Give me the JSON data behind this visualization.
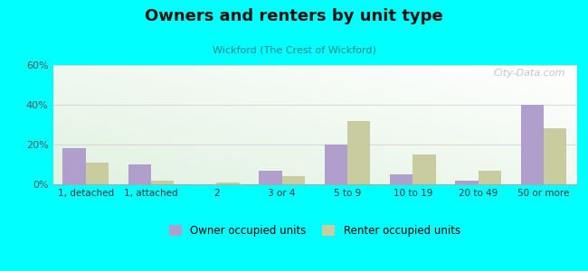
{
  "title": "Owners and renters by unit type",
  "subtitle": "Wickford (The Crest of Wickford)",
  "categories": [
    "1, detached",
    "1, attached",
    "2",
    "3 or 4",
    "5 to 9",
    "10 to 19",
    "20 to 49",
    "50 or more"
  ],
  "owner_values": [
    18,
    10,
    0,
    7,
    20,
    5,
    2,
    40
  ],
  "renter_values": [
    11,
    2,
    1,
    4,
    32,
    15,
    7,
    28
  ],
  "owner_color": "#b09fcc",
  "renter_color": "#c8cc9f",
  "ylim": [
    0,
    60
  ],
  "yticks": [
    0,
    20,
    40,
    60
  ],
  "ytick_labels": [
    "0%",
    "20%",
    "40%",
    "60%"
  ],
  "background_color": "#00ffff",
  "bar_width": 0.35,
  "legend_owner": "Owner occupied units",
  "legend_renter": "Renter occupied units",
  "watermark": "City-Data.com"
}
